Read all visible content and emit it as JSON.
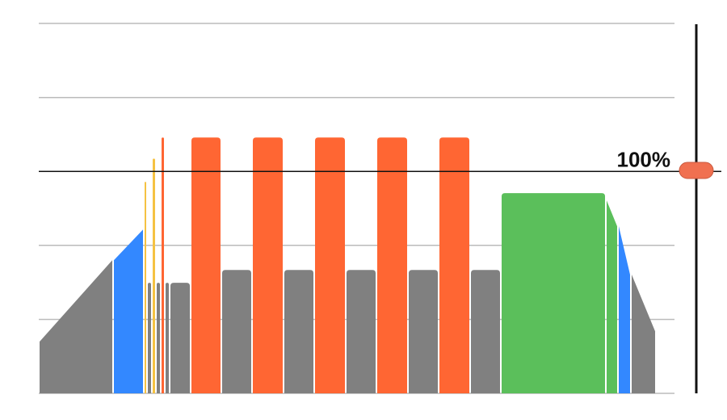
{
  "chart_data": {
    "type": "workout",
    "xlim": [
      0,
      787
    ],
    "ylim": [
      0,
      166.7
    ],
    "yticks": [
      0,
      33.3,
      66.7,
      133.3,
      166.7
    ],
    "grid": true,
    "threshold": {
      "value": 100,
      "label": "100%"
    },
    "segments": [
      {
        "start": 0,
        "end": 92,
        "from": 23.3,
        "to": 60,
        "color": "#808080"
      },
      {
        "start": 92,
        "end": 130,
        "from": 60,
        "to": 73.8,
        "color": "#3388ff"
      },
      {
        "start": 130,
        "end": 134,
        "from": 95.3,
        "to": 95.3,
        "color": "#f5c242"
      },
      {
        "start": 134,
        "end": 140,
        "from": 49.8,
        "to": 49.8,
        "color": "#808080"
      },
      {
        "start": 140,
        "end": 145,
        "from": 105.8,
        "to": 105.8,
        "color": "#f5c242"
      },
      {
        "start": 145,
        "end": 151,
        "from": 49.8,
        "to": 49.8,
        "color": "#808080"
      },
      {
        "start": 151,
        "end": 156,
        "from": 115.3,
        "to": 115.3,
        "color": "#ff6633"
      },
      {
        "start": 156,
        "end": 162,
        "from": 49.8,
        "to": 49.8,
        "color": "#808080"
      },
      {
        "start": 162,
        "end": 188,
        "from": 49.8,
        "to": 49.8,
        "color": "#808080"
      },
      {
        "start": 188,
        "end": 226,
        "from": 115.3,
        "to": 115.3,
        "color": "#ff6633"
      },
      {
        "start": 226,
        "end": 264,
        "from": 55.6,
        "to": 55.6,
        "color": "#808080"
      },
      {
        "start": 264,
        "end": 303,
        "from": 115.3,
        "to": 115.3,
        "color": "#ff6633"
      },
      {
        "start": 303,
        "end": 341,
        "from": 55.6,
        "to": 55.6,
        "color": "#808080"
      },
      {
        "start": 341,
        "end": 380,
        "from": 115.3,
        "to": 115.3,
        "color": "#ff6633"
      },
      {
        "start": 380,
        "end": 418,
        "from": 55.6,
        "to": 55.6,
        "color": "#808080"
      },
      {
        "start": 418,
        "end": 457,
        "from": 115.3,
        "to": 115.3,
        "color": "#ff6633"
      },
      {
        "start": 457,
        "end": 495,
        "from": 55.6,
        "to": 55.6,
        "color": "#808080"
      },
      {
        "start": 495,
        "end": 534,
        "from": 115.3,
        "to": 115.3,
        "color": "#ff6633"
      },
      {
        "start": 534,
        "end": 572,
        "from": 55.6,
        "to": 55.6,
        "color": "#808080"
      },
      {
        "start": 572,
        "end": 702,
        "from": 90.2,
        "to": 90.2,
        "color": "#5bbf5b"
      },
      {
        "start": 702,
        "end": 717,
        "from": 86.9,
        "to": 75.3,
        "color": "#5bbf5b"
      },
      {
        "start": 717,
        "end": 733,
        "from": 75.3,
        "to": 53.5,
        "color": "#3388ff"
      },
      {
        "start": 733,
        "end": 764,
        "from": 53.5,
        "to": 28,
        "color": "#808080"
      }
    ]
  }
}
